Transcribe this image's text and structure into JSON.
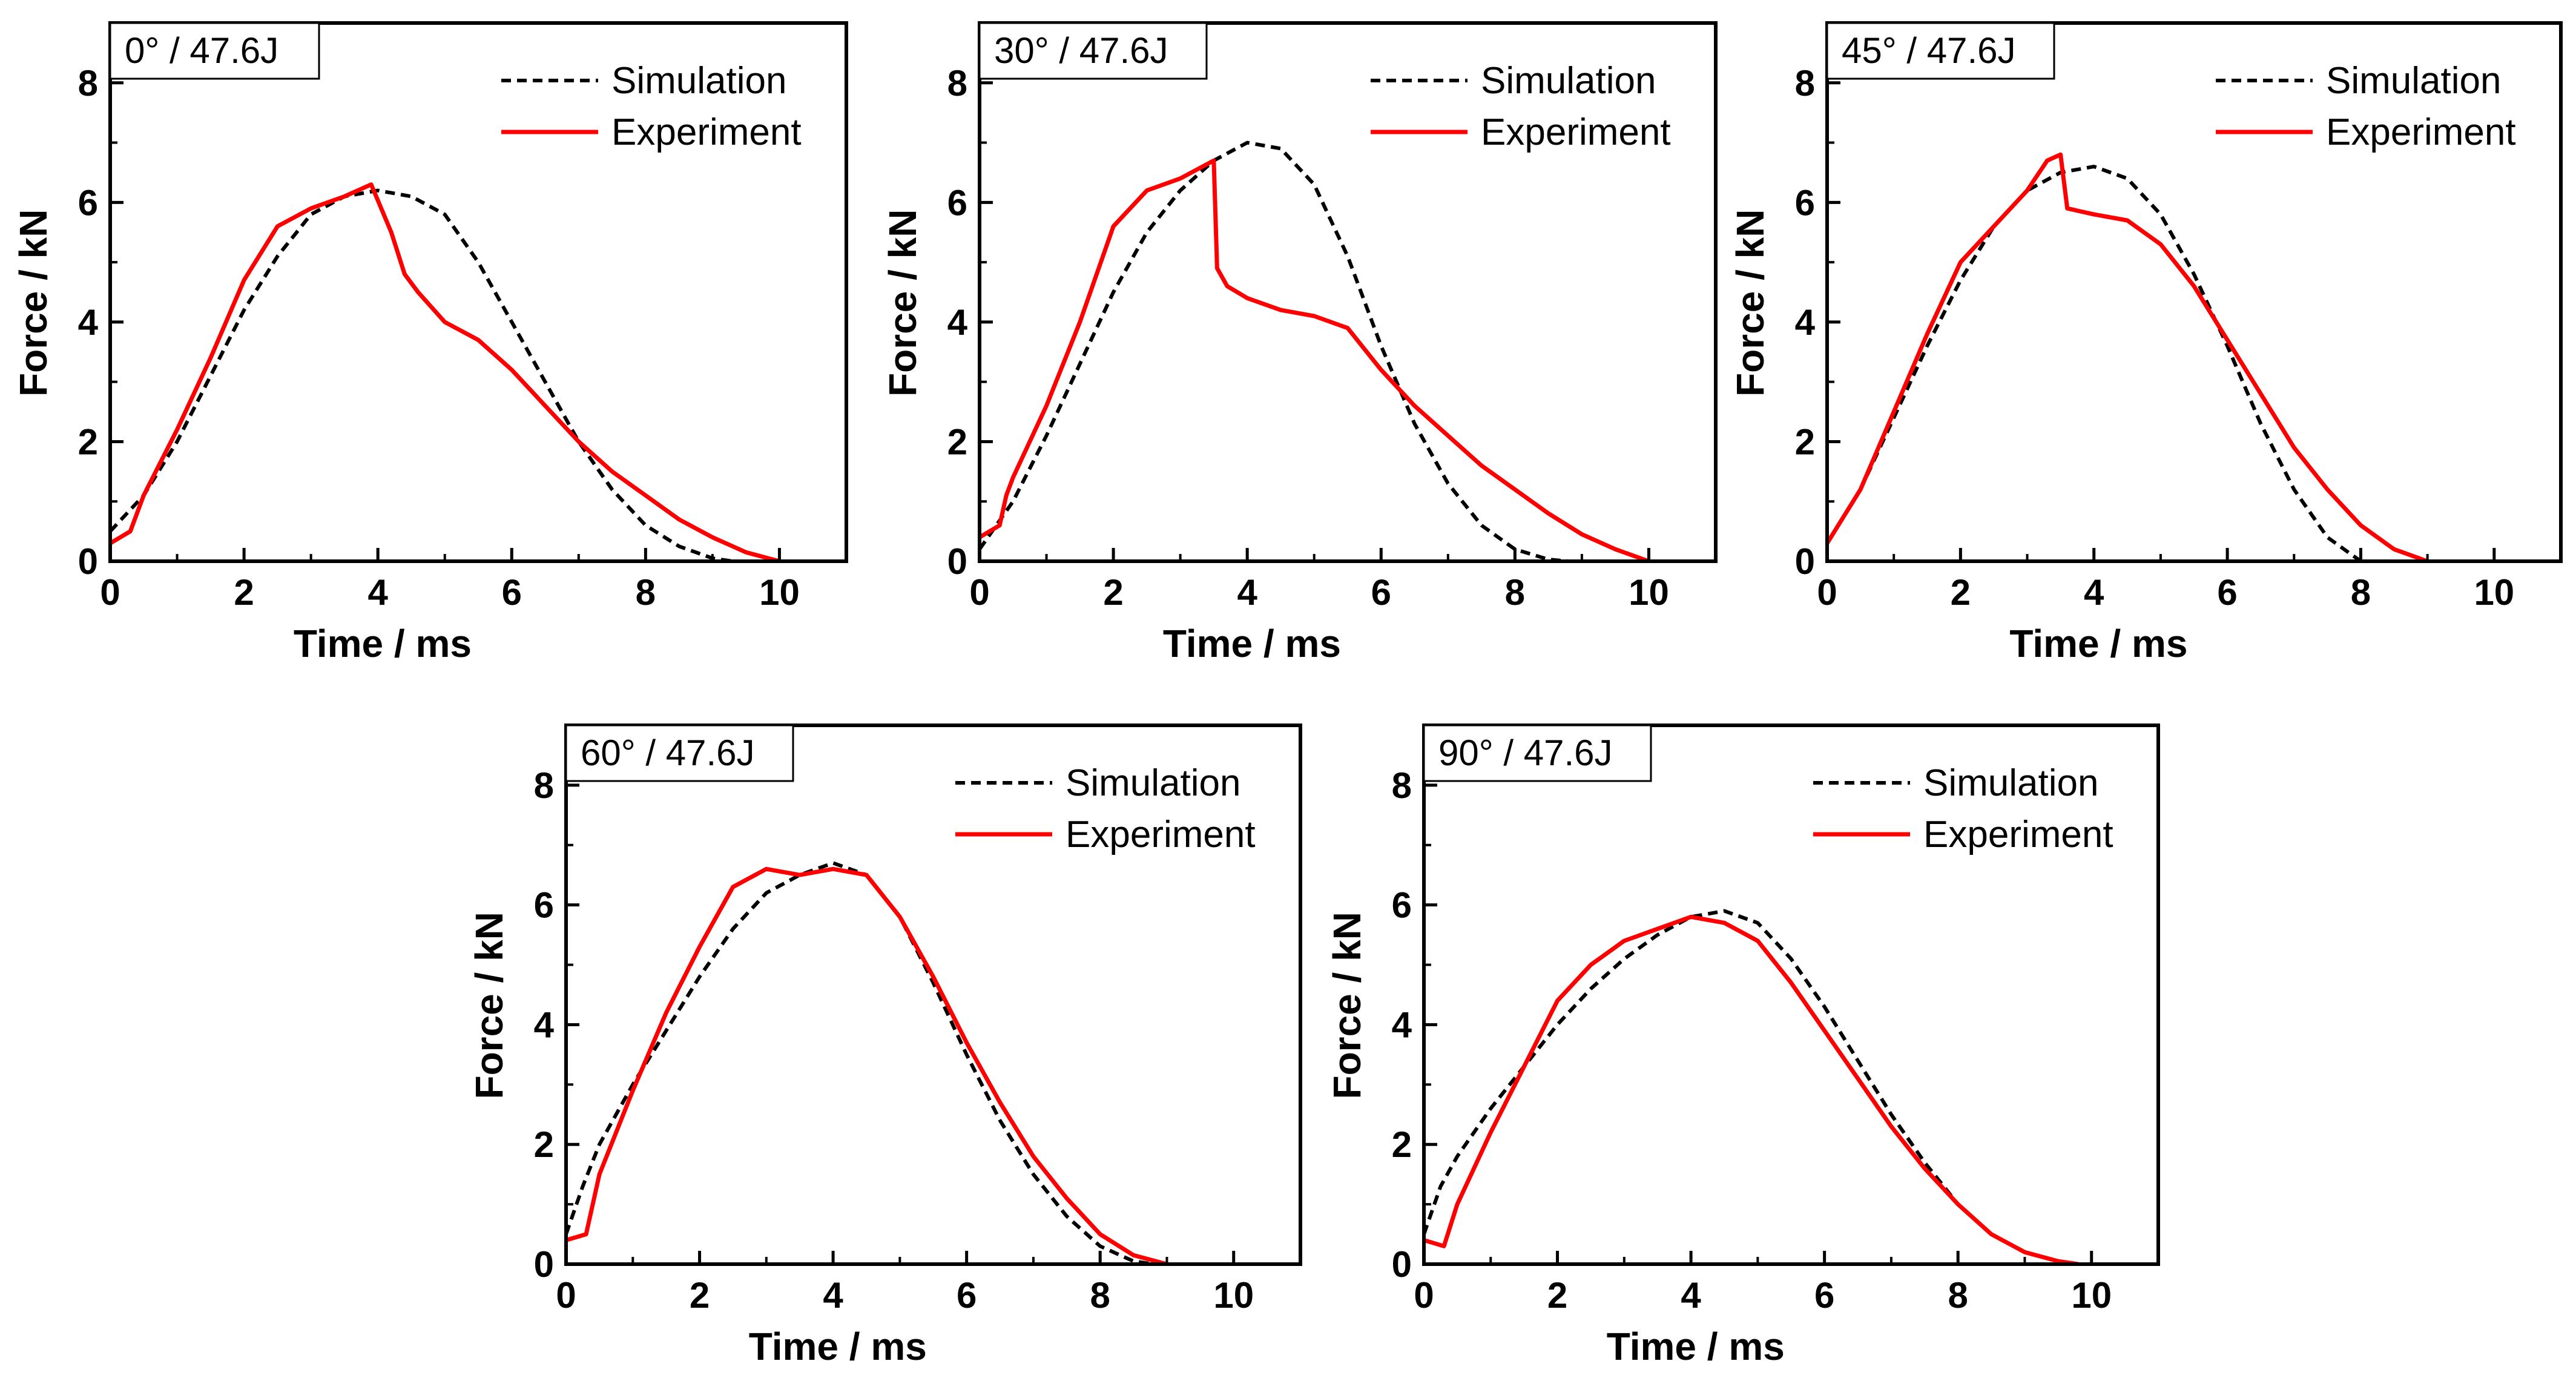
{
  "figure_title": "",
  "colors": {
    "simulation": "#000000",
    "experiment": "#ff0000",
    "axes": "#000000"
  },
  "chart_data": [
    {
      "type": "line",
      "panel_label": "0° / 47.6J",
      "xlabel": "Time / ms",
      "ylabel": "Force / kN",
      "xlim": [
        0,
        11
      ],
      "ylim": [
        0,
        9
      ],
      "xticks": [
        0,
        2,
        4,
        6,
        8,
        10
      ],
      "yticks": [
        0,
        2,
        4,
        6,
        8
      ],
      "legend_position": "top-right",
      "series": [
        {
          "name": "Simulation",
          "style": "dashed",
          "x": [
            0,
            0.5,
            1,
            1.5,
            2,
            2.5,
            3,
            3.5,
            4,
            4.5,
            5,
            5.5,
            6,
            6.5,
            7,
            7.5,
            8,
            8.5,
            9,
            9.3
          ],
          "y": [
            0.5,
            1.1,
            2.0,
            3.1,
            4.2,
            5.1,
            5.8,
            6.1,
            6.2,
            6.1,
            5.8,
            5.0,
            4.0,
            3.0,
            2.0,
            1.2,
            0.6,
            0.25,
            0.05,
            0
          ]
        },
        {
          "name": "Experiment",
          "style": "solid",
          "x": [
            0,
            0.3,
            0.5,
            1,
            1.5,
            2,
            2.5,
            3,
            3.5,
            3.9,
            4.2,
            4.4,
            4.6,
            5,
            5.5,
            6,
            6.5,
            7,
            7.5,
            8,
            8.5,
            9,
            9.5,
            10
          ],
          "y": [
            0.3,
            0.5,
            1.1,
            2.2,
            3.4,
            4.7,
            5.6,
            5.9,
            6.1,
            6.3,
            5.5,
            4.8,
            4.5,
            4.0,
            3.7,
            3.2,
            2.6,
            2.0,
            1.5,
            1.1,
            0.7,
            0.4,
            0.15,
            0
          ]
        }
      ]
    },
    {
      "type": "line",
      "panel_label": "30° / 47.6J",
      "xlabel": "Time / ms",
      "ylabel": "Force / kN",
      "xlim": [
        0,
        11
      ],
      "ylim": [
        0,
        9
      ],
      "xticks": [
        0,
        2,
        4,
        6,
        8,
        10
      ],
      "yticks": [
        0,
        2,
        4,
        6,
        8
      ],
      "legend_position": "top-right",
      "series": [
        {
          "name": "Simulation",
          "style": "dashed",
          "x": [
            0,
            0.5,
            1,
            1.5,
            2,
            2.5,
            3,
            3.5,
            4,
            4.5,
            5,
            5.5,
            6,
            6.5,
            7,
            7.5,
            8,
            8.5,
            8.8
          ],
          "y": [
            0.2,
            1.0,
            2.1,
            3.3,
            4.5,
            5.5,
            6.2,
            6.7,
            7.0,
            6.9,
            6.3,
            5.1,
            3.6,
            2.3,
            1.3,
            0.6,
            0.2,
            0.03,
            0
          ]
        },
        {
          "name": "Experiment",
          "style": "solid",
          "x": [
            0,
            0.3,
            0.4,
            0.5,
            1,
            1.5,
            2,
            2.5,
            3,
            3.5,
            3.55,
            3.7,
            4,
            4.5,
            5,
            5.5,
            6,
            6.5,
            7,
            7.5,
            8,
            8.5,
            9,
            9.5,
            10
          ],
          "y": [
            0.4,
            0.6,
            1.1,
            1.4,
            2.6,
            4.0,
            5.6,
            6.2,
            6.4,
            6.7,
            4.9,
            4.6,
            4.4,
            4.2,
            4.1,
            3.9,
            3.2,
            2.6,
            2.1,
            1.6,
            1.2,
            0.8,
            0.45,
            0.2,
            0
          ]
        }
      ]
    },
    {
      "type": "line",
      "panel_label": "45° / 47.6J",
      "xlabel": "Time / ms",
      "ylabel": "Force / kN",
      "xlim": [
        0,
        11
      ],
      "ylim": [
        0,
        9
      ],
      "xticks": [
        0,
        2,
        4,
        6,
        8,
        10
      ],
      "yticks": [
        0,
        2,
        4,
        6,
        8
      ],
      "legend_position": "top-right",
      "series": [
        {
          "name": "Simulation",
          "style": "dashed",
          "x": [
            0,
            0.5,
            1,
            1.5,
            2,
            2.5,
            3,
            3.5,
            4,
            4.5,
            5,
            5.5,
            6,
            6.5,
            7,
            7.5,
            8
          ],
          "y": [
            0.3,
            1.2,
            2.4,
            3.6,
            4.7,
            5.6,
            6.2,
            6.5,
            6.6,
            6.4,
            5.8,
            4.8,
            3.6,
            2.3,
            1.2,
            0.4,
            0
          ]
        },
        {
          "name": "Experiment",
          "style": "solid",
          "x": [
            0,
            0.5,
            1,
            1.5,
            2,
            2.5,
            3,
            3.3,
            3.5,
            3.6,
            4,
            4.5,
            5,
            5.5,
            6,
            6.5,
            7,
            7.5,
            8,
            8.5,
            9
          ],
          "y": [
            0.3,
            1.2,
            2.5,
            3.8,
            5.0,
            5.6,
            6.2,
            6.7,
            6.8,
            5.9,
            5.8,
            5.7,
            5.3,
            4.6,
            3.7,
            2.8,
            1.9,
            1.2,
            0.6,
            0.2,
            0
          ]
        }
      ]
    },
    {
      "type": "line",
      "panel_label": "60° / 47.6J",
      "xlabel": "Time / ms",
      "ylabel": "Force / kN",
      "xlim": [
        0,
        11
      ],
      "ylim": [
        0,
        9
      ],
      "xticks": [
        0,
        2,
        4,
        6,
        8,
        10
      ],
      "yticks": [
        0,
        2,
        4,
        6,
        8
      ],
      "legend_position": "top-right",
      "series": [
        {
          "name": "Simulation",
          "style": "dashed",
          "x": [
            0,
            0.25,
            0.5,
            1,
            1.5,
            2,
            2.5,
            3,
            3.5,
            4,
            4.5,
            5,
            5.5,
            6,
            6.5,
            7,
            7.5,
            8,
            8.5,
            8.8
          ],
          "y": [
            0.5,
            1.3,
            2.0,
            3.0,
            3.9,
            4.8,
            5.6,
            6.2,
            6.5,
            6.7,
            6.5,
            5.8,
            4.7,
            3.5,
            2.4,
            1.5,
            0.8,
            0.3,
            0.05,
            0
          ]
        },
        {
          "name": "Experiment",
          "style": "solid",
          "x": [
            0,
            0.3,
            0.5,
            1,
            1.5,
            2,
            2.5,
            3,
            3.5,
            4,
            4.5,
            5,
            5.5,
            6,
            6.5,
            7,
            7.5,
            8,
            8.5,
            9
          ],
          "y": [
            0.4,
            0.5,
            1.5,
            2.9,
            4.2,
            5.3,
            6.3,
            6.6,
            6.5,
            6.6,
            6.5,
            5.8,
            4.8,
            3.7,
            2.7,
            1.8,
            1.1,
            0.5,
            0.15,
            0
          ]
        }
      ]
    },
    {
      "type": "line",
      "panel_label": "90° / 47.6J",
      "xlabel": "Time / ms",
      "ylabel": "Force / kN",
      "xlim": [
        0,
        11
      ],
      "ylim": [
        0,
        9
      ],
      "xticks": [
        0,
        2,
        4,
        6,
        8,
        10
      ],
      "yticks": [
        0,
        2,
        4,
        6,
        8
      ],
      "legend_position": "top-right",
      "series": [
        {
          "name": "Simulation",
          "style": "dashed",
          "x": [
            0,
            0.25,
            0.5,
            1,
            1.5,
            2,
            2.5,
            3,
            3.5,
            4,
            4.5,
            5,
            5.5,
            6,
            6.5,
            7,
            7.5,
            8,
            8.5,
            9,
            9.5,
            9.8
          ],
          "y": [
            0.5,
            1.3,
            1.8,
            2.6,
            3.3,
            4.0,
            4.6,
            5.1,
            5.5,
            5.8,
            5.9,
            5.7,
            5.1,
            4.3,
            3.4,
            2.5,
            1.7,
            1.0,
            0.5,
            0.2,
            0.05,
            0
          ]
        },
        {
          "name": "Experiment",
          "style": "solid",
          "x": [
            0,
            0.3,
            0.5,
            1,
            1.5,
            2,
            2.5,
            3,
            3.5,
            4,
            4.5,
            5,
            5.5,
            6,
            6.5,
            7,
            7.5,
            8,
            8.5,
            9,
            9.5,
            9.8
          ],
          "y": [
            0.4,
            0.3,
            1.0,
            2.2,
            3.3,
            4.4,
            5.0,
            5.4,
            5.6,
            5.8,
            5.7,
            5.4,
            4.7,
            3.9,
            3.1,
            2.3,
            1.6,
            1.0,
            0.5,
            0.2,
            0.05,
            0
          ]
        }
      ]
    }
  ]
}
